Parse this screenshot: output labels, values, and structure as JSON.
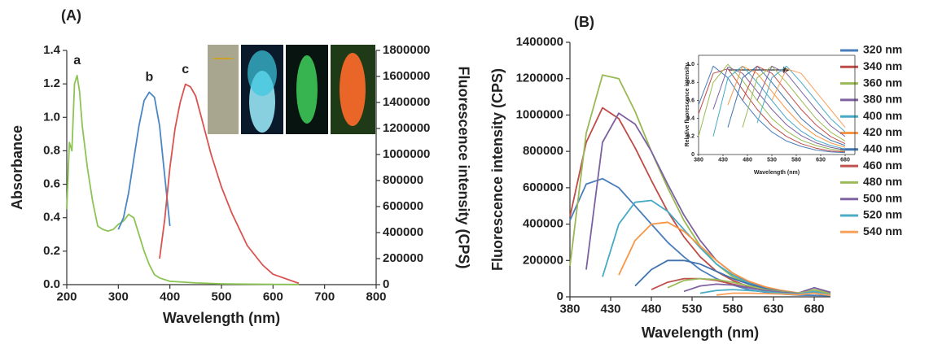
{
  "chart_data": [
    {
      "type": "line",
      "panel_label": "(A)",
      "xlabel": "Wavelength (nm)",
      "ylabel": "Absorbance",
      "y2label": "Fluorescence intensity (CPS)",
      "xlim": [
        200,
        800
      ],
      "xticks": [
        200,
        300,
        400,
        500,
        600,
        700,
        800
      ],
      "ylim": [
        0,
        1.4
      ],
      "yticks": [
        {
          "value": 0,
          "label": "0.0"
        },
        0.2,
        0.4,
        0.6,
        0.8,
        {
          "value": 1,
          "label": "1.0"
        },
        1.2,
        1.4
      ],
      "y2lim": [
        0,
        1800000
      ],
      "y2ticks": [
        0,
        200000,
        400000,
        600000,
        800000,
        1000000,
        1200000,
        1400000,
        1600000,
        1800000
      ],
      "direct_labels": true,
      "series": [
        {
          "name": "a",
          "color": "#8cc454",
          "x": [
            200,
            205,
            210,
            215,
            220,
            225,
            230,
            240,
            250,
            260,
            270,
            280,
            290,
            300,
            310,
            320,
            330,
            340,
            350,
            360,
            370,
            380,
            400,
            450,
            500,
            550,
            600,
            650
          ],
          "values": [
            0.45,
            0.85,
            0.8,
            1.2,
            1.25,
            1.15,
            0.95,
            0.7,
            0.5,
            0.35,
            0.33,
            0.32,
            0.33,
            0.36,
            0.38,
            0.42,
            0.4,
            0.3,
            0.2,
            0.12,
            0.06,
            0.04,
            0.02,
            0.01,
            0.005,
            0.003,
            0.002,
            0.001
          ]
        },
        {
          "name": "b",
          "color": "#4a86c5",
          "x": [
            300,
            310,
            320,
            330,
            340,
            350,
            360,
            370,
            380,
            390,
            400
          ],
          "values": [
            0.33,
            0.4,
            0.55,
            0.75,
            0.95,
            1.1,
            1.15,
            1.12,
            0.95,
            0.65,
            0.35
          ]
        },
        {
          "name": "c",
          "color": "#d9534f",
          "axis": "y2",
          "x": [
            380,
            390,
            400,
            410,
            420,
            430,
            440,
            450,
            460,
            480,
            500,
            520,
            550,
            580,
            600,
            650
          ],
          "values": [
            200000,
            500000,
            900000,
            1200000,
            1400000,
            1540000,
            1520000,
            1450000,
            1300000,
            1000000,
            750000,
            550000,
            300000,
            150000,
            80000,
            10000
          ]
        }
      ]
    },
    {
      "type": "line",
      "panel_label": "(B)",
      "xlabel": "Wavelength (nm)",
      "ylabel": "Fluorescence intensity (CPS)",
      "legend": "right",
      "xlim": [
        380,
        700
      ],
      "xticks": [
        380,
        430,
        480,
        530,
        580,
        630,
        680
      ],
      "ylim": [
        0,
        1400000
      ],
      "yticks": [
        0,
        200000,
        400000,
        600000,
        800000,
        1000000,
        1200000,
        1400000
      ],
      "x": [
        380,
        400,
        420,
        440,
        460,
        480,
        500,
        520,
        540,
        560,
        580,
        600,
        620,
        640,
        660,
        680,
        700
      ],
      "series": [
        {
          "name": "320 nm",
          "color": "#4a7ebb",
          "values": [
            420000,
            620000,
            650000,
            600000,
            500000,
            400000,
            300000,
            220000,
            150000,
            100000,
            65000,
            40000,
            25000,
            15000,
            10000,
            8000,
            6000
          ]
        },
        {
          "name": "340 nm",
          "color": "#be4b48",
          "values": [
            440000,
            850000,
            1040000,
            980000,
            820000,
            640000,
            470000,
            330000,
            220000,
            140000,
            90000,
            55000,
            35000,
            20000,
            12000,
            30000,
            15000
          ]
        },
        {
          "name": "360 nm",
          "color": "#98b954",
          "values": [
            170000,
            900000,
            1220000,
            1200000,
            1020000,
            800000,
            600000,
            420000,
            280000,
            180000,
            110000,
            70000,
            40000,
            25000,
            15000,
            40000,
            20000
          ]
        },
        {
          "name": "380 nm",
          "color": "#7d60a0",
          "values": [
            null,
            150000,
            850000,
            1010000,
            950000,
            800000,
            620000,
            450000,
            310000,
            200000,
            130000,
            80000,
            50000,
            30000,
            20000,
            50000,
            25000
          ]
        },
        {
          "name": "400 nm",
          "color": "#46aac5",
          "values": [
            null,
            null,
            110000,
            400000,
            520000,
            530000,
            470000,
            370000,
            270000,
            180000,
            120000,
            75000,
            45000,
            30000,
            20000,
            25000,
            15000
          ]
        },
        {
          "name": "420 nm",
          "color": "#f79646",
          "values": [
            null,
            null,
            null,
            120000,
            310000,
            400000,
            410000,
            360000,
            280000,
            200000,
            130000,
            85000,
            55000,
            35000,
            22000,
            30000,
            15000
          ]
        },
        {
          "name": "440 nm",
          "color": "#3f73ae",
          "values": [
            null,
            null,
            null,
            null,
            60000,
            150000,
            200000,
            200000,
            180000,
            140000,
            100000,
            70000,
            45000,
            30000,
            20000,
            25000,
            12000
          ]
        },
        {
          "name": "460 nm",
          "color": "#c0504d",
          "values": [
            null,
            null,
            null,
            null,
            null,
            40000,
            80000,
            100000,
            100000,
            90000,
            70000,
            50000,
            35000,
            25000,
            18000,
            20000,
            10000
          ]
        },
        {
          "name": "480 nm",
          "color": "#9bbb59",
          "values": [
            null,
            null,
            null,
            null,
            null,
            null,
            50000,
            90000,
            100000,
            95000,
            80000,
            60000,
            40000,
            28000,
            20000,
            30000,
            15000
          ]
        },
        {
          "name": "500 nm",
          "color": "#8064a2",
          "values": [
            null,
            null,
            null,
            null,
            null,
            null,
            null,
            30000,
            60000,
            70000,
            65000,
            50000,
            35000,
            25000,
            18000,
            20000,
            10000
          ]
        },
        {
          "name": "520 nm",
          "color": "#4bacc6",
          "values": [
            null,
            null,
            null,
            null,
            null,
            null,
            null,
            null,
            20000,
            35000,
            40000,
            35000,
            28000,
            20000,
            15000,
            30000,
            10000
          ]
        },
        {
          "name": "540 nm",
          "color": "#f9a05a",
          "values": [
            null,
            null,
            null,
            null,
            null,
            null,
            null,
            null,
            null,
            10000,
            20000,
            20000,
            18000,
            15000,
            12000,
            20000,
            8000
          ]
        }
      ]
    },
    {
      "type": "line",
      "xlabel": "Wavelength (nm)",
      "ylabel": "Relative fluorescence intensity",
      "xlim": [
        380,
        700
      ],
      "xticks": [
        380,
        430,
        480,
        530,
        580,
        630,
        680
      ],
      "ylim": [
        0,
        1.1
      ],
      "yticks": [
        0,
        0.2,
        0.4,
        0.6,
        0.8,
        {
          "value": 1,
          "label": "1.0"
        }
      ],
      "x": [
        380,
        410,
        440,
        470,
        500,
        530,
        560,
        590,
        620,
        650,
        680
      ],
      "series": [
        {
          "color": "#4a7ebb",
          "values": [
            0.55,
            0.98,
            0.85,
            0.6,
            0.4,
            0.25,
            0.15,
            0.09,
            0.05,
            0.03,
            0.02
          ]
        },
        {
          "color": "#be4b48",
          "values": [
            0.45,
            0.9,
            0.95,
            0.72,
            0.5,
            0.32,
            0.2,
            0.12,
            0.07,
            0.04,
            0.03
          ]
        },
        {
          "color": "#98b954",
          "values": [
            0.2,
            0.8,
            1.0,
            0.82,
            0.6,
            0.4,
            0.26,
            0.16,
            0.1,
            0.06,
            0.04
          ]
        },
        {
          "color": "#7d60a0",
          "values": [
            null,
            0.5,
            0.97,
            0.9,
            0.7,
            0.5,
            0.33,
            0.21,
            0.13,
            0.08,
            0.05
          ]
        },
        {
          "color": "#46aac5",
          "values": [
            null,
            0.2,
            0.85,
            0.98,
            0.8,
            0.6,
            0.4,
            0.26,
            0.16,
            0.1,
            0.06
          ]
        },
        {
          "color": "#f79646",
          "values": [
            null,
            null,
            0.55,
            0.98,
            0.9,
            0.7,
            0.5,
            0.33,
            0.21,
            0.13,
            0.08
          ]
        },
        {
          "color": "#3f73ae",
          "values": [
            null,
            null,
            0.3,
            0.85,
            0.98,
            0.8,
            0.6,
            0.4,
            0.26,
            0.16,
            0.1
          ]
        },
        {
          "color": "#c0504d",
          "values": [
            null,
            null,
            null,
            0.6,
            0.98,
            0.9,
            0.7,
            0.5,
            0.33,
            0.2,
            0.12
          ]
        },
        {
          "color": "#9bbb59",
          "values": [
            null,
            null,
            null,
            0.3,
            0.85,
            0.98,
            0.8,
            0.6,
            0.4,
            0.25,
            0.15
          ]
        },
        {
          "color": "#8064a2",
          "values": [
            null,
            null,
            null,
            null,
            0.6,
            0.98,
            0.9,
            0.7,
            0.5,
            0.32,
            0.2
          ]
        },
        {
          "color": "#4bacc6",
          "values": [
            null,
            null,
            null,
            null,
            0.35,
            0.85,
            0.98,
            0.8,
            0.6,
            0.4,
            0.25
          ]
        },
        {
          "color": "#f9a05a",
          "values": [
            null,
            null,
            null,
            null,
            null,
            0.6,
            0.95,
            0.9,
            0.7,
            0.5,
            0.3
          ]
        }
      ]
    }
  ]
}
